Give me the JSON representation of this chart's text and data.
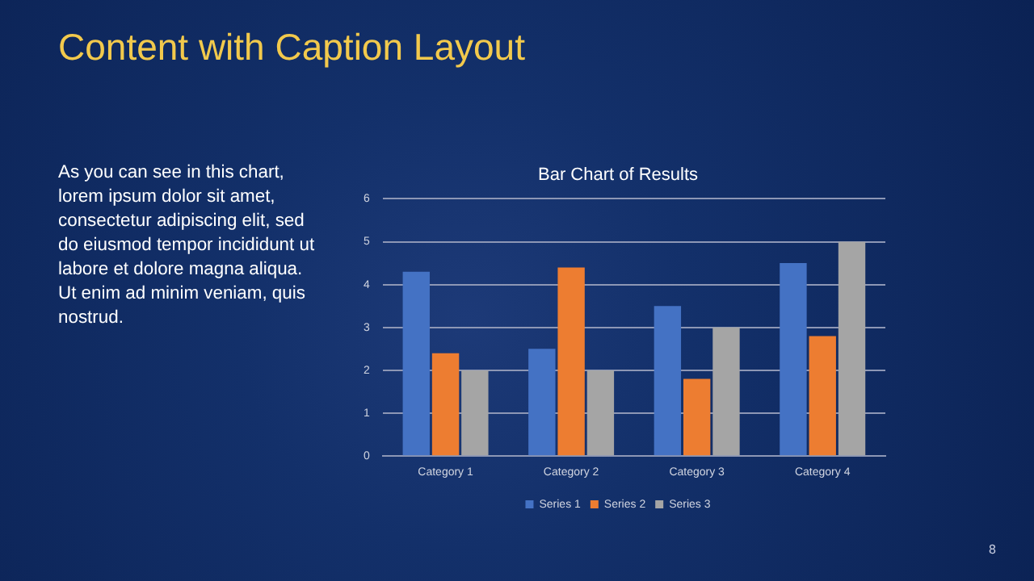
{
  "chart_data": {
    "type": "bar",
    "title": "Content with Caption Layout",
    "subtitle": "Bar Chart of Results",
    "annotations": [
      "As you can see in this chart, lorem ipsum dolor sit amet, consectetur adipiscing elit, sed do eiusmod tempor incididunt ut labore et dolore magna aliqua. Ut enim ad minim veniam, quis nostrud.",
      "8"
    ],
    "categories": [
      "Category 1",
      "Category 2",
      "Category 3",
      "Category 4"
    ],
    "series": [
      {
        "name": "Series 1",
        "color": "#4472c4",
        "values": [
          4.3,
          2.5,
          3.5,
          4.5
        ]
      },
      {
        "name": "Series 2",
        "color": "#ed7d31",
        "values": [
          2.4,
          4.4,
          1.8,
          2.8
        ]
      },
      {
        "name": "Series 3",
        "color": "#a5a5a5",
        "values": [
          2,
          2,
          3,
          5
        ]
      }
    ],
    "ylim": [
      0,
      6
    ],
    "yticks": [
      0,
      1,
      2,
      3,
      4,
      5,
      6
    ],
    "grid": "y",
    "legend": "bottom"
  }
}
